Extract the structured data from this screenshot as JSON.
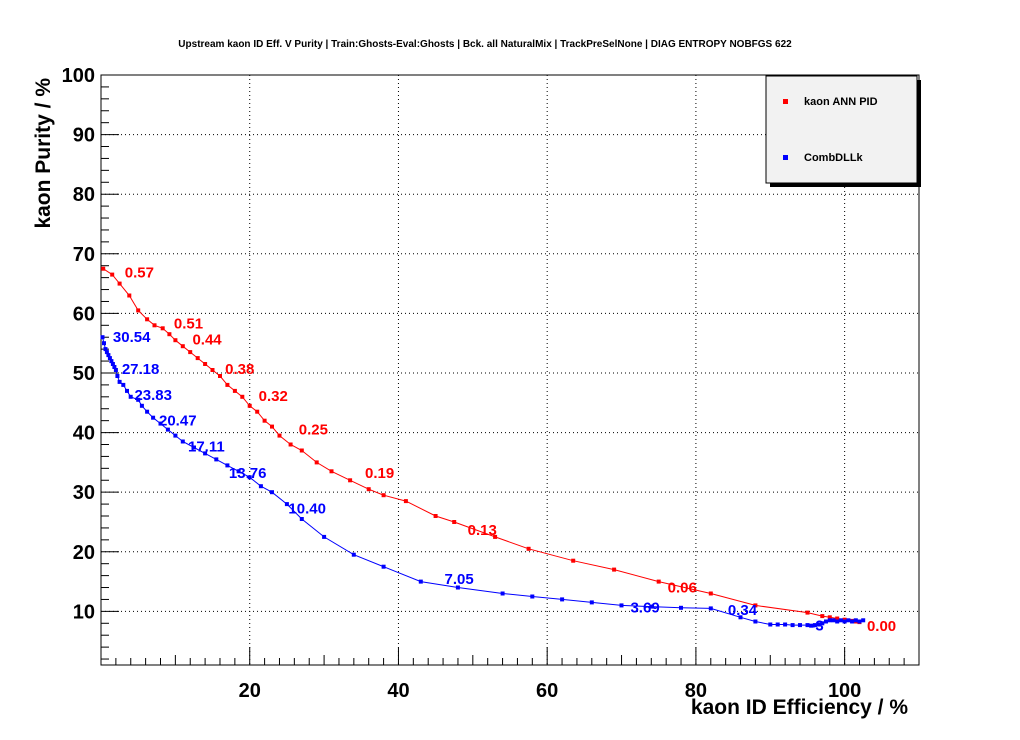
{
  "chart_data": {
    "type": "line",
    "title": "Upstream kaon ID Eff. V Purity | Train:Ghosts-Eval:Ghosts | Bck. all NaturalMix | TrackPreSelNone | DIAG ENTROPY NOBFGS 622",
    "xlabel": "kaon ID Efficiency / %",
    "ylabel": "kaon Purity / %",
    "xlim": [
      0,
      110
    ],
    "ylim": [
      1,
      100
    ],
    "x_ticks": [
      20,
      40,
      60,
      80,
      100
    ],
    "y_ticks": [
      10,
      20,
      30,
      40,
      50,
      60,
      70,
      80,
      90,
      100
    ],
    "grid": true,
    "legend_position": "top-right",
    "series": [
      {
        "name": "kaon ANN PID",
        "color": "#ff0000",
        "x": [
          0.3,
          1.5,
          2.5,
          3.8,
          5,
          6.2,
          7.2,
          8.3,
          9.2,
          10,
          11,
          12,
          13,
          14,
          15,
          16,
          17,
          18,
          19,
          20,
          21,
          22,
          23,
          24,
          25.5,
          27,
          29,
          31,
          33.5,
          36,
          38,
          41,
          45,
          47.5,
          53,
          57.5,
          63.5,
          69,
          75,
          82,
          88,
          95,
          97,
          98,
          99,
          100,
          101,
          101.5,
          102
        ],
        "y": [
          67.5,
          66.5,
          65,
          63,
          60.5,
          59,
          58,
          57.5,
          56.5,
          55.5,
          54.5,
          53.5,
          52.5,
          51.5,
          50.5,
          49.5,
          48,
          47,
          46,
          44.5,
          43.5,
          42,
          41,
          39.5,
          38,
          37,
          35,
          33.5,
          32,
          30.5,
          29.5,
          28.5,
          26,
          25,
          22.5,
          20.5,
          18.5,
          17,
          15,
          13,
          11,
          9.8,
          9.2,
          9,
          8.8,
          8.6,
          8.4,
          8.3,
          8.2
        ]
      },
      {
        "name": "CombDLLk",
        "color": "#0000ff",
        "x": [
          0.2,
          0.4,
          0.6,
          0.8,
          1,
          1.2,
          1.4,
          1.6,
          1.8,
          2,
          2.2,
          2.5,
          3,
          3.5,
          4,
          5,
          5.5,
          6.2,
          7,
          8,
          9,
          10,
          11,
          12.5,
          14,
          15.5,
          17,
          18.5,
          20,
          21.5,
          23,
          25,
          27,
          30,
          34,
          38,
          43,
          48,
          54,
          58,
          62,
          66,
          70,
          74,
          78,
          82,
          86,
          88,
          90,
          91,
          92,
          93,
          94,
          95,
          95.5,
          96,
          96.5,
          97,
          97.5,
          98,
          98.5,
          99,
          99.5,
          100,
          100.5,
          101,
          101.5,
          102,
          102.5
        ],
        "y": [
          56,
          55,
          54,
          53.5,
          53,
          52.5,
          52,
          51.5,
          51,
          50.5,
          49.5,
          48.5,
          48,
          47,
          46,
          45.5,
          44.5,
          43.5,
          42.5,
          41.5,
          40.5,
          39.5,
          38.5,
          37.5,
          36.5,
          35.5,
          34.5,
          33.5,
          32.5,
          31,
          30,
          28,
          25.5,
          22.5,
          19.5,
          17.5,
          15,
          14,
          13,
          12.5,
          12,
          11.5,
          11,
          10.8,
          10.6,
          10.5,
          9,
          8.3,
          7.8,
          7.8,
          7.8,
          7.7,
          7.7,
          7.7,
          7.6,
          7.7,
          7.8,
          8,
          8.3,
          8.5,
          8.5,
          8.3,
          8.5,
          8.3,
          8.5,
          8.3,
          8.5,
          8.3,
          8.5
        ]
      }
    ],
    "annotations": [
      {
        "text": "0.57",
        "x": 3.2,
        "y": 66,
        "color": "#ff0000"
      },
      {
        "text": "0.51",
        "x": 9.8,
        "y": 57.5,
        "color": "#ff0000"
      },
      {
        "text": "0.44",
        "x": 12.3,
        "y": 54.8,
        "color": "#ff0000"
      },
      {
        "text": "0.38",
        "x": 16.7,
        "y": 49.8,
        "color": "#ff0000"
      },
      {
        "text": "0.32",
        "x": 21.2,
        "y": 45.3,
        "color": "#ff0000"
      },
      {
        "text": "0.25",
        "x": 26.6,
        "y": 39.7,
        "color": "#ff0000"
      },
      {
        "text": "0.19",
        "x": 35.5,
        "y": 32.4,
        "color": "#ff0000"
      },
      {
        "text": "0.13",
        "x": 49.3,
        "y": 22.8,
        "color": "#ff0000"
      },
      {
        "text": "0.06",
        "x": 76.2,
        "y": 13.2,
        "color": "#ff0000"
      },
      {
        "text": "0.00",
        "x": 103,
        "y": 6.7,
        "color": "#ff0000"
      },
      {
        "text": "30.54",
        "x": 1.6,
        "y": 55.2,
        "color": "#0000ff"
      },
      {
        "text": "27.18",
        "x": 2.8,
        "y": 49.8,
        "color": "#0000ff"
      },
      {
        "text": "23.83",
        "x": 4.5,
        "y": 45.5,
        "color": "#0000ff"
      },
      {
        "text": "20.47",
        "x": 7.8,
        "y": 41.2,
        "color": "#0000ff"
      },
      {
        "text": "17.11",
        "x": 11.7,
        "y": 36.8,
        "color": "#0000ff"
      },
      {
        "text": "13.76",
        "x": 17.2,
        "y": 32.4,
        "color": "#0000ff"
      },
      {
        "text": "10.40",
        "x": 25.2,
        "y": 26.4,
        "color": "#0000ff"
      },
      {
        "text": "7.05",
        "x": 46.2,
        "y": 14.6,
        "color": "#0000ff"
      },
      {
        "text": "3.69",
        "x": 71.2,
        "y": 9.8,
        "color": "#0000ff"
      },
      {
        "text": "0.34",
        "x": 84.3,
        "y": 9.4,
        "color": "#0000ff"
      },
      {
        "text": "-3",
        "x": 95.4,
        "y": 6.8,
        "color": "#0000ff"
      }
    ]
  }
}
